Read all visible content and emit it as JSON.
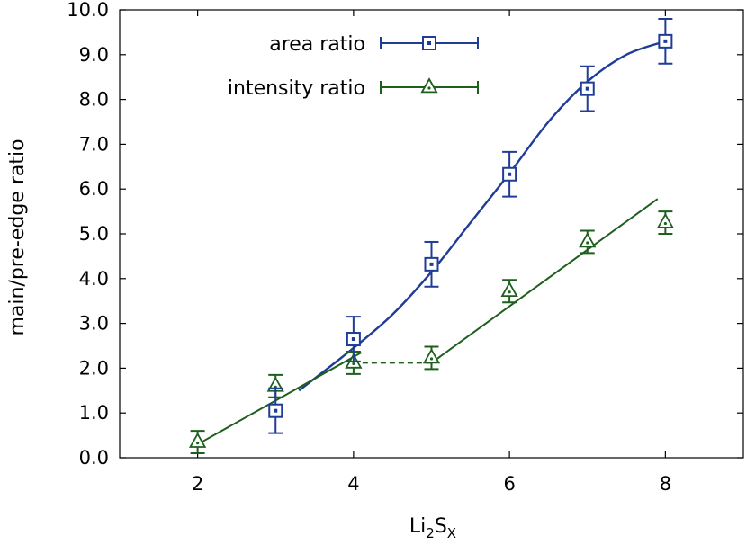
{
  "chart_data": {
    "type": "scatter",
    "xlabel": "Li2SX",
    "xlabel_parts": {
      "base": "Li",
      "sub1": "2",
      "mid": "S",
      "sub2": "X"
    },
    "ylabel": "main/pre-edge ratio",
    "xlim": [
      1,
      9
    ],
    "ylim": [
      0,
      10
    ],
    "xticks": [
      2,
      4,
      6,
      8
    ],
    "xtick_labels": [
      "2",
      "4",
      "6",
      "8"
    ],
    "yticks": [
      0,
      1,
      2,
      3,
      4,
      5,
      6,
      7,
      8,
      9,
      10
    ],
    "ytick_labels": [
      "0.0",
      "1.0",
      "2.0",
      "3.0",
      "4.0",
      "5.0",
      "6.0",
      "7.0",
      "8.0",
      "9.0",
      "10.0"
    ],
    "grid": false,
    "legend_position": "top-left",
    "series": [
      {
        "name": "area ratio",
        "color": "#1f3c96",
        "marker": "square",
        "x": [
          3,
          4,
          5,
          6,
          7,
          8
        ],
        "y": [
          1.05,
          2.65,
          4.32,
          6.33,
          8.24,
          9.3
        ],
        "yerr": [
          0.5,
          0.5,
          0.5,
          0.5,
          0.5,
          0.5
        ],
        "fit": {
          "style": "solid",
          "points": [
            [
              3.3,
              1.5
            ],
            [
              4,
              2.45
            ],
            [
              4.5,
              3.2
            ],
            [
              5,
              4.15
            ],
            [
              5.5,
              5.25
            ],
            [
              6,
              6.35
            ],
            [
              6.5,
              7.5
            ],
            [
              7,
              8.4
            ],
            [
              7.5,
              9.0
            ],
            [
              8,
              9.3
            ]
          ]
        }
      },
      {
        "name": "intensity ratio",
        "color": "#1e5f1e",
        "marker": "triangle",
        "x": [
          2,
          3,
          4,
          5,
          6,
          7,
          8
        ],
        "y": [
          0.35,
          1.6,
          2.12,
          2.23,
          3.72,
          4.82,
          5.25
        ],
        "yerr": [
          0.25,
          0.25,
          0.25,
          0.25,
          0.25,
          0.25,
          0.25
        ],
        "fits": [
          {
            "style": "solid",
            "points": [
              [
                2,
                0.3
              ],
              [
                4.1,
                2.35
              ]
            ]
          },
          {
            "style": "dashed",
            "points": [
              [
                4,
                2.12
              ],
              [
                5,
                2.12
              ]
            ]
          },
          {
            "style": "solid",
            "points": [
              [
                5,
                2.12
              ],
              [
                7.9,
                5.78
              ]
            ]
          }
        ]
      }
    ]
  }
}
